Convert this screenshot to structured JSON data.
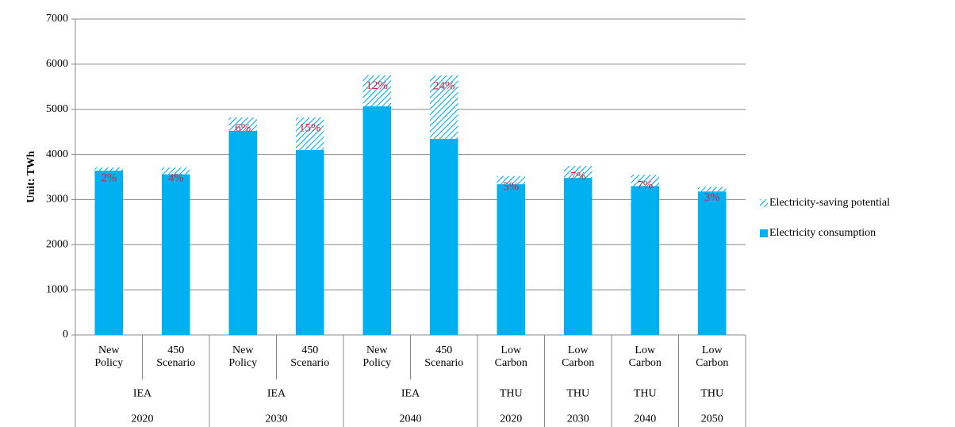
{
  "chart_data": {
    "type": "bar",
    "stacked": true,
    "y_label": "Unit: TWh",
    "ylim": [
      0,
      7000
    ],
    "yticks": [
      0,
      1000,
      2000,
      3000,
      4000,
      5000,
      6000,
      7000
    ],
    "grid": true,
    "legend": "right",
    "groups": [
      {
        "source": "IEA",
        "year": "2020",
        "categories": [
          "New Policy",
          "450 Scenario"
        ]
      },
      {
        "source": "IEA",
        "year": "2030",
        "categories": [
          "New Policy",
          "450 Scenario"
        ]
      },
      {
        "source": "IEA",
        "year": "2040",
        "categories": [
          "New Policy",
          "450 Scenario"
        ]
      },
      {
        "source": "THU",
        "year": "2020",
        "categories": [
          "Low Carbon"
        ]
      },
      {
        "source": "THU",
        "year": "2030",
        "categories": [
          "Low Carbon"
        ]
      },
      {
        "source": "THU",
        "year": "2040",
        "categories": [
          "Low Carbon"
        ]
      },
      {
        "source": "THU",
        "year": "2050",
        "categories": [
          "Low Carbon"
        ]
      }
    ],
    "series": [
      {
        "name": "Electricity consumption",
        "color": "#00b0f0",
        "pattern": "solid",
        "values": [
          3640,
          3560,
          4520,
          4100,
          5065,
          4345,
          3340,
          3480,
          3300,
          3180
        ]
      },
      {
        "name": "Electricity-saving potential",
        "color": "#00b0f0",
        "pattern": "hatch",
        "values": [
          70,
          150,
          300,
          720,
          690,
          1405,
          180,
          265,
          250,
          100
        ],
        "share_labels": [
          "2%",
          "4%",
          "6%",
          "15%",
          "12%",
          "24%",
          "5%",
          "7%",
          "7%",
          "3%"
        ]
      }
    ]
  }
}
